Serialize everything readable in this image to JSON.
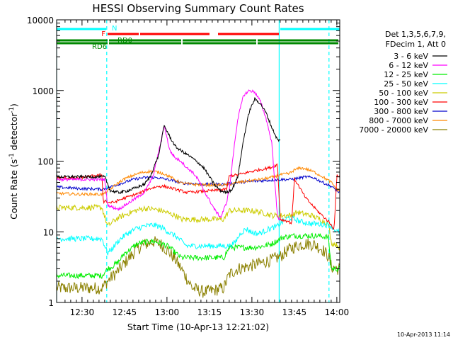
{
  "chart_data": {
    "type": "line",
    "title": "HESSI Observing Summary Count Rates",
    "xlabel": "Start Time (10-Apr-13 12:21:02)",
    "ylabel": "Count Rate (s",
    "ylabel_sup1": "-1",
    "ylabel_mid": " detector",
    "ylabel_sup2": "-1",
    "ylabel_end": ")",
    "yscale": "log",
    "ylim": [
      1,
      10000
    ],
    "xlim_minutes": [
      0,
      100
    ],
    "x_unit": "minutes since 12:21:02",
    "xticks": [
      {
        "label": "12:30",
        "x": 8.97
      },
      {
        "label": "12:45",
        "x": 23.97
      },
      {
        "label": "13:00",
        "x": 38.97
      },
      {
        "label": "13:15",
        "x": 53.97
      },
      {
        "label": "13:30",
        "x": 68.97
      },
      {
        "label": "13:45",
        "x": 83.97
      },
      {
        "label": "14:00",
        "x": 98.97
      }
    ],
    "yticks": [
      {
        "label": "1",
        "y": 1
      },
      {
        "label": "10",
        "y": 10
      },
      {
        "label": "100",
        "y": 100
      },
      {
        "label": "1000",
        "y": 1000
      },
      {
        "label": "10000",
        "y": 10000
      }
    ],
    "legend": {
      "placement": "right",
      "header": [
        "Det 1,3,5,6,7,9,",
        "FDecim 1, Att 0"
      ]
    },
    "series": [
      {
        "name": "3 - 6 keV",
        "color": "#000000",
        "x": [
          0,
          8,
          17,
          19,
          22,
          25,
          28,
          31,
          33,
          36,
          38,
          40,
          42,
          44,
          46,
          48,
          50,
          52,
          54,
          56,
          58,
          60,
          62,
          64,
          66,
          68,
          70,
          72,
          74,
          76,
          78,
          79
        ],
        "y": [
          60,
          60,
          60,
          38,
          36,
          38,
          42,
          47,
          60,
          120,
          320,
          220,
          160,
          140,
          125,
          110,
          95,
          80,
          60,
          45,
          38,
          36,
          40,
          60,
          200,
          500,
          760,
          650,
          480,
          300,
          200,
          195
        ]
      },
      {
        "name": "6 - 12 keV",
        "color": "#ff00ff",
        "x": [
          0,
          8,
          17,
          18,
          20,
          22,
          25,
          28,
          31,
          34,
          37,
          38,
          40,
          42,
          44,
          46,
          48,
          50,
          52,
          54,
          56,
          58,
          60,
          61,
          63,
          64,
          66,
          68,
          70,
          72,
          74,
          76,
          78,
          79
        ],
        "y": [
          55,
          55,
          55,
          24,
          22,
          21,
          25,
          30,
          36,
          60,
          200,
          320,
          140,
          110,
          100,
          80,
          70,
          55,
          38,
          28,
          20,
          16,
          26,
          40,
          200,
          400,
          850,
          1000,
          950,
          700,
          400,
          180,
          16,
          15
        ]
      },
      {
        "name": "12 - 25 keV",
        "color": "#00ee00",
        "x": [
          0,
          16,
          18,
          20,
          22,
          24,
          26,
          28,
          30,
          32,
          34,
          36,
          38,
          40,
          42,
          44,
          48,
          52,
          56,
          59,
          61,
          64,
          67,
          70,
          72,
          74,
          76,
          78,
          80,
          82,
          84,
          86,
          88,
          90,
          92,
          94,
          96,
          97,
          99,
          100
        ],
        "y": [
          2.4,
          2.4,
          3,
          3.3,
          3.8,
          5,
          5.6,
          6.6,
          7,
          7.2,
          7.4,
          7,
          6.6,
          6,
          5,
          4.3,
          4.3,
          4.3,
          4.3,
          4.3,
          6,
          6,
          6,
          6,
          6.2,
          6.4,
          6.8,
          7.5,
          8.4,
          8.6,
          8.8,
          8.8,
          8.8,
          8.8,
          8.8,
          8.6,
          8.4,
          3,
          3,
          3
        ]
      },
      {
        "name": "25 - 50 keV",
        "color": "#00ffff",
        "x": [
          0,
          16,
          18,
          20,
          22,
          25,
          28,
          31,
          34,
          36,
          38,
          40,
          42,
          44,
          46,
          50,
          54,
          58,
          61,
          63,
          65,
          67,
          69,
          71,
          73,
          75,
          78,
          80,
          82,
          84,
          86,
          88,
          90,
          92,
          94,
          96,
          97,
          99,
          100
        ],
        "y": [
          8,
          8,
          5,
          6,
          7.6,
          9.5,
          11,
          12,
          12.5,
          12,
          11,
          9.6,
          8.7,
          7.4,
          6.3,
          6.3,
          6.3,
          6.3,
          6.3,
          7,
          9.6,
          11,
          9.8,
          9.4,
          10,
          11,
          12,
          14,
          16,
          15,
          14,
          13.5,
          13,
          13,
          12.8,
          12.4,
          12,
          10,
          10
        ]
      },
      {
        "name": "50 - 100 keV",
        "color": "#cccc00",
        "x": [
          0,
          16,
          18,
          20,
          22,
          25,
          28,
          31,
          34,
          37,
          40,
          42,
          44,
          48,
          52,
          56,
          59,
          61,
          64,
          68,
          72,
          76,
          80,
          83,
          85,
          87,
          90,
          93,
          96,
          97,
          99,
          100
        ],
        "y": [
          22,
          22,
          12,
          14,
          16,
          18,
          20,
          21.5,
          21,
          20,
          18,
          17,
          15,
          15,
          15,
          15,
          15,
          20,
          20,
          20,
          19,
          17,
          17,
          17,
          19,
          18,
          17,
          15,
          13,
          7,
          6.5,
          6
        ]
      },
      {
        "name": "100 - 300 keV",
        "color": "#ff0000",
        "x": [
          0,
          8,
          16,
          16.5,
          17,
          18,
          20,
          22,
          24,
          26,
          28,
          30,
          32,
          34,
          36,
          38,
          40,
          42,
          44,
          46,
          50,
          54,
          58,
          60,
          61,
          64,
          68,
          72,
          76,
          78,
          79,
          82,
          83,
          84,
          88,
          92,
          96,
          98,
          99,
          100
        ],
        "y": [
          58,
          58,
          64,
          26,
          28,
          26,
          26,
          28,
          30,
          32,
          34,
          36,
          40,
          42,
          44,
          44,
          42,
          40,
          38,
          36,
          37,
          38,
          39,
          40,
          62,
          64,
          70,
          76,
          82,
          90,
          15,
          14,
          13,
          56,
          30,
          20,
          14,
          11,
          62,
          62
        ]
      },
      {
        "name": "300 - 800 keV",
        "color": "#0000cc",
        "x": [
          0,
          8,
          16,
          17,
          19,
          21,
          24,
          27,
          30,
          33,
          36,
          38,
          40,
          42,
          44,
          48,
          52,
          56,
          59,
          61,
          64,
          67,
          70,
          73,
          76,
          79,
          82,
          85,
          88,
          91,
          94,
          97,
          99,
          100
        ],
        "y": [
          43,
          41,
          40,
          41,
          43,
          46,
          50,
          55,
          58,
          59,
          58,
          56,
          54,
          52,
          49,
          48,
          47,
          47,
          47,
          48,
          50,
          51,
          52,
          53,
          54,
          55,
          55,
          57,
          60,
          58,
          50,
          44,
          38,
          36
        ]
      },
      {
        "name": "800 - 7000 keV",
        "color": "#ff8800",
        "x": [
          0,
          8,
          16,
          17,
          19,
          21,
          24,
          27,
          30,
          33,
          36,
          38,
          40,
          42,
          44,
          48,
          52,
          56,
          59,
          61,
          64,
          67,
          70,
          73,
          76,
          79,
          81,
          82,
          84,
          86,
          88,
          91,
          94,
          97,
          99,
          100
        ],
        "y": [
          35,
          34,
          34,
          35,
          40,
          47,
          56,
          63,
          69,
          72,
          70,
          66,
          60,
          54,
          49,
          47,
          46,
          46,
          46,
          47,
          50,
          52,
          54,
          56,
          59,
          64,
          66,
          66,
          75,
          80,
          78,
          70,
          60,
          50,
          40,
          38
        ]
      },
      {
        "name": "7000 - 20000 keV",
        "color": "#8b8000",
        "x": [
          0,
          16,
          18,
          20,
          22,
          25,
          28,
          31,
          34,
          37,
          40,
          42,
          44,
          48,
          52,
          56,
          59,
          61,
          64,
          67,
          70,
          73,
          76,
          79,
          82,
          85,
          88,
          91,
          94,
          96,
          97,
          99,
          100
        ],
        "y": [
          1.6,
          1.6,
          2,
          2.4,
          2.9,
          4,
          5.5,
          6.6,
          7.3,
          6.6,
          5,
          4,
          3,
          1.6,
          1.4,
          1.5,
          1.6,
          2.5,
          3,
          3.2,
          3.4,
          3.7,
          4,
          4.5,
          5.6,
          6.4,
          6.8,
          6.6,
          5.6,
          4.5,
          3.2,
          3,
          3
        ]
      }
    ],
    "annotations": [
      {
        "label": "N",
        "color": "#00ffff",
        "segments": [
          [
            0,
            17.5
          ],
          [
            79,
            100
          ]
        ]
      },
      {
        "label": "F",
        "color": "#ff0000",
        "segments": [
          [
            18,
            29
          ],
          [
            29.5,
            54
          ],
          [
            57,
            78.5
          ]
        ]
      },
      {
        "label": "RD0",
        "color": "#008800",
        "segments": [
          [
            0,
            18
          ],
          [
            18.5,
            44
          ],
          [
            44.5,
            70.5
          ],
          [
            71,
            99.5
          ]
        ]
      },
      {
        "label": "RD6",
        "color": "#008800",
        "segments": [
          [
            0,
            18
          ],
          [
            18.5,
            44
          ],
          [
            44.5,
            70.5
          ],
          [
            71,
            99.5
          ]
        ]
      }
    ],
    "vertical_lines": [
      {
        "x": 0,
        "color": "#00ffff",
        "style": "solid"
      },
      {
        "x": 17.7,
        "color": "#00ffff",
        "style": "dashed"
      },
      {
        "x": 78.6,
        "color": "#00ffff",
        "style": "solid"
      },
      {
        "x": 96.2,
        "color": "#00ffff",
        "style": "dashed"
      }
    ],
    "grid": false
  },
  "footer_date": "10-Apr-2013 11:14"
}
